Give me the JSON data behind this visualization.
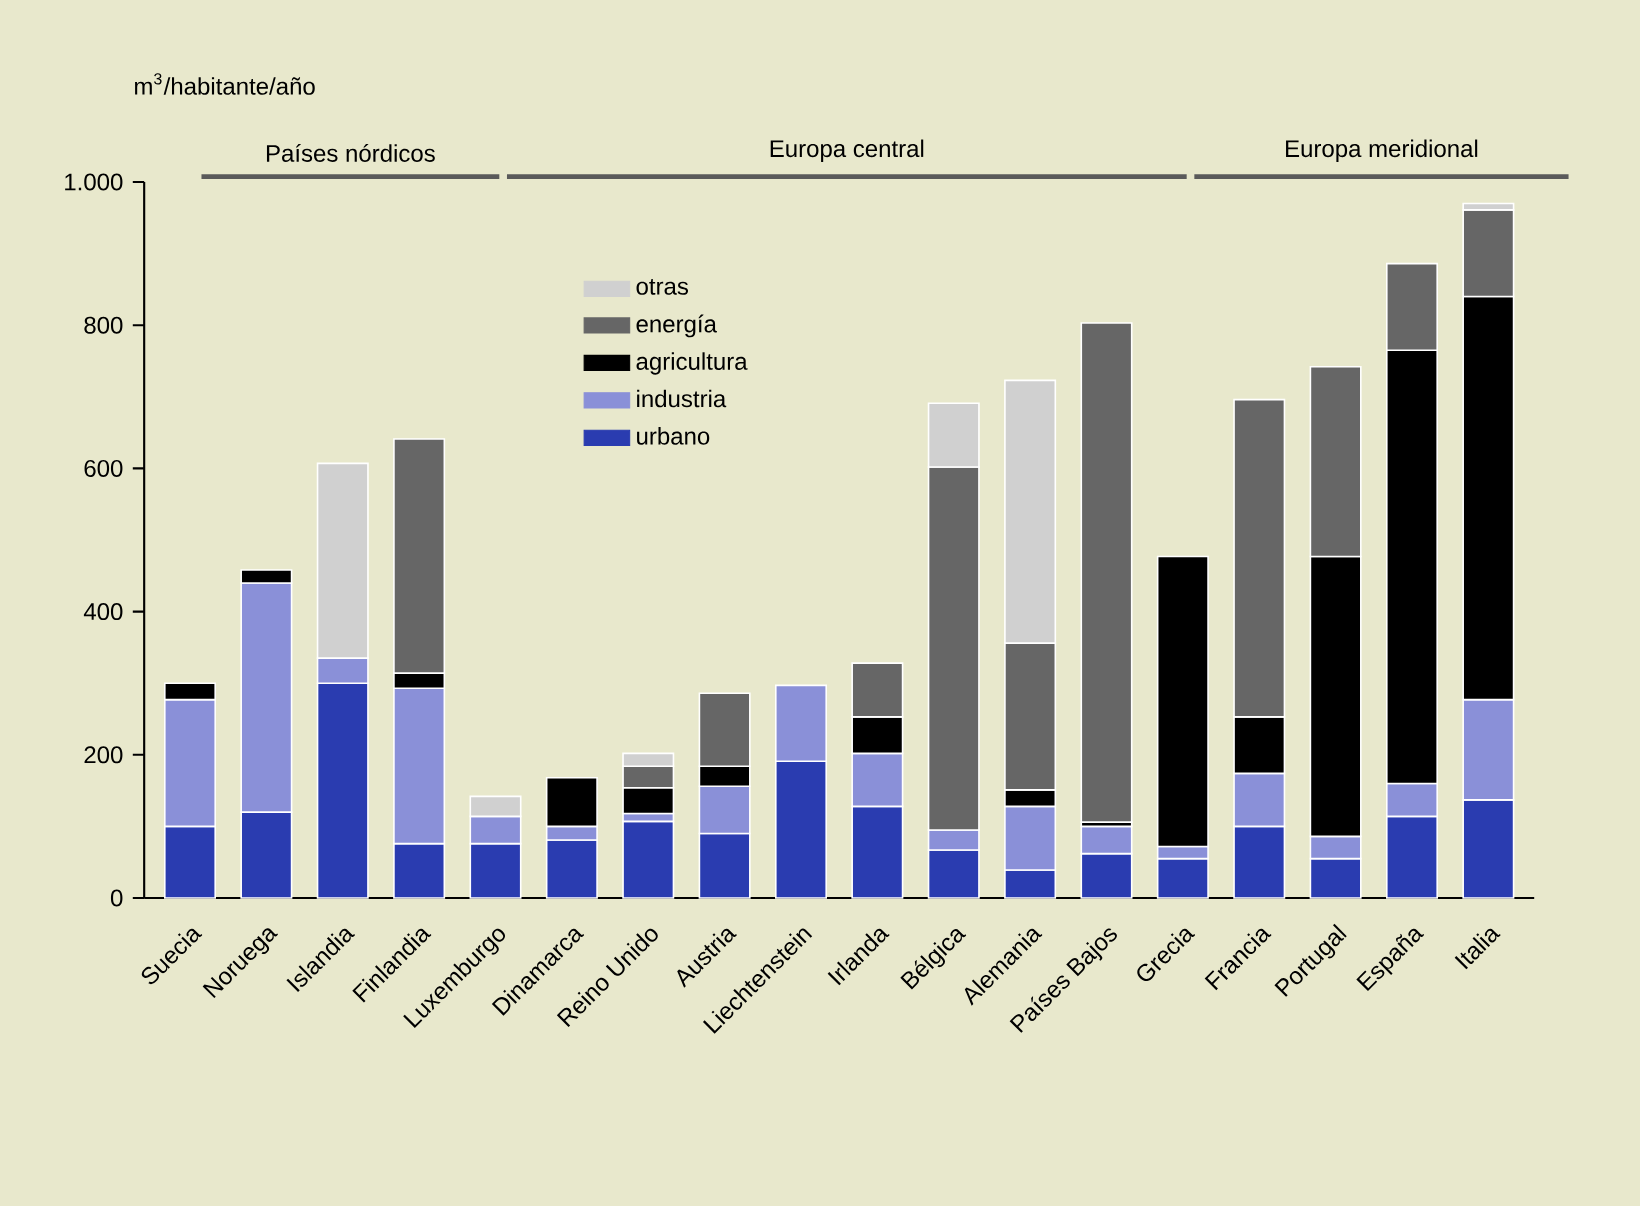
{
  "chart_data": {
    "type": "bar",
    "stacked": true,
    "ylabel": "m$^{3}$/habitante/año",
    "categories": [
      "Suecia",
      "Noruega",
      "Islandia",
      "Finlandia",
      "Luxemburgo",
      "Dinamarca",
      "Reino Unido",
      "Austria",
      "Liechtenstein",
      "Irlanda",
      "Bélgica",
      "Alemania",
      "Países Bajos",
      "Grecia",
      "Francia",
      "Portugal",
      "España",
      "Italia"
    ],
    "series": [
      {
        "name": "urbano",
        "color": "#2a3cb0",
        "values": [
          100,
          120,
          300,
          76,
          76,
          81,
          107,
          90,
          191,
          128,
          67,
          39,
          62,
          55,
          100,
          55,
          114,
          137
        ]
      },
      {
        "name": "industria",
        "color": "#8a90d8",
        "values": [
          177,
          320,
          35,
          217,
          38,
          19,
          11,
          66,
          106,
          74,
          28,
          89,
          38,
          17,
          74,
          31,
          46,
          140
        ]
      },
      {
        "name": "agricultura",
        "color": "#000000",
        "values": [
          23,
          18,
          null,
          21,
          null,
          68,
          36,
          28,
          null,
          51,
          null,
          23,
          6,
          405,
          79,
          391,
          605,
          563
        ]
      },
      {
        "name": "energía",
        "color": "#666666",
        "values": [
          null,
          null,
          null,
          327,
          null,
          null,
          30,
          102,
          null,
          75,
          507,
          205,
          697,
          null,
          443,
          265,
          121,
          121
        ]
      },
      {
        "name": "otras",
        "color": "#d0d0d0",
        "values": [
          null,
          null,
          272,
          null,
          28,
          null,
          18,
          null,
          null,
          null,
          89,
          367,
          null,
          null,
          null,
          null,
          null,
          9
        ]
      }
    ],
    "ylim": [
      0,
      1000
    ],
    "yticks": [
      0,
      200,
      400,
      600,
      800,
      {
        "value": 1000,
        "label": "1.000"
      }
    ],
    "legend": "top",
    "annotations": [
      "Países nórdicos",
      "Europa central",
      "Europa meridional"
    ]
  }
}
